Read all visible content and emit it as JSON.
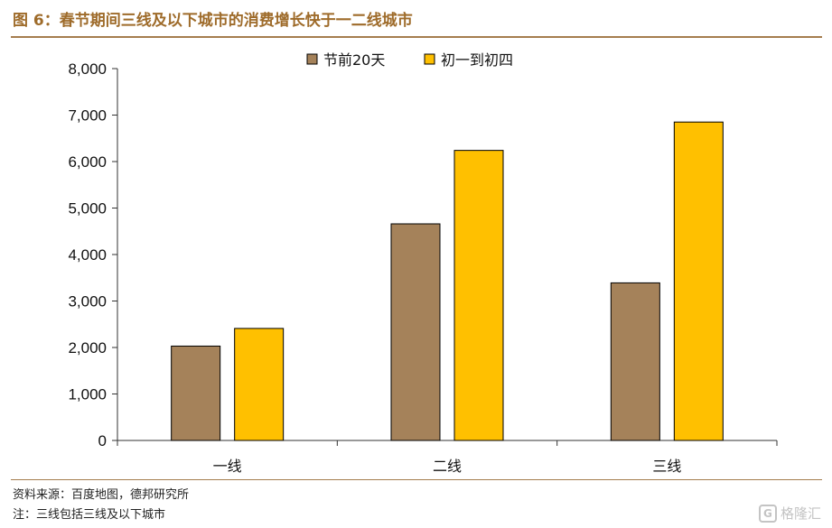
{
  "figure": {
    "title": "图 6：春节期间三线及以下城市的消费增长快于一二线城市",
    "source": "资料来源：百度地图，德邦研究所",
    "note": "注：三线包括三线及以下城市",
    "watermark": "格隆汇"
  },
  "chart_data": {
    "type": "bar",
    "title": "",
    "xlabel": "",
    "ylabel": "",
    "categories": [
      "一线",
      "二线",
      "三线"
    ],
    "series": [
      {
        "name": "节前20天",
        "values": [
          2030,
          4660,
          3390
        ],
        "color": "#a5825a"
      },
      {
        "name": "初一到初四",
        "values": [
          2410,
          6240,
          6850
        ],
        "color": "#ffc000"
      }
    ],
    "ylim": [
      0,
      8000
    ],
    "yticks": [
      0,
      1000,
      2000,
      3000,
      4000,
      5000,
      6000,
      7000,
      8000
    ],
    "ytick_labels": [
      "0",
      "1,000",
      "2,000",
      "3,000",
      "4,000",
      "5,000",
      "6,000",
      "7,000",
      "8,000"
    ],
    "grid": false,
    "legend_position": "top-center"
  }
}
